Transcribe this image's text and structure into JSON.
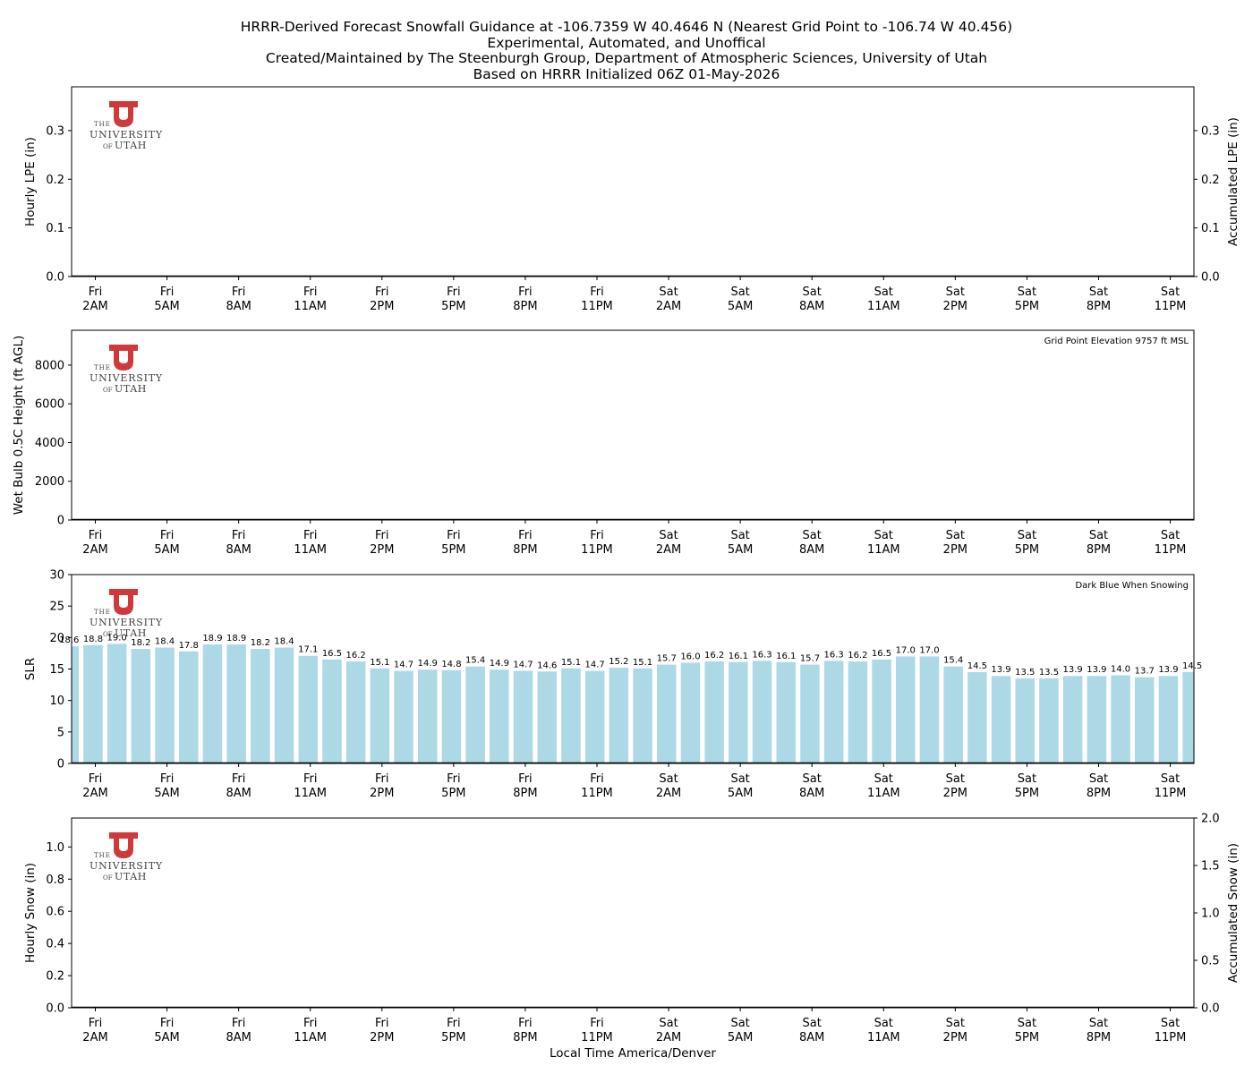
{
  "title": {
    "line1": "HRRR-Derived Forecast Snowfall Guidance at -106.7359 W 40.4646 N (Nearest Grid Point to -106.74 W 40.456)",
    "line2": "Experimental, Automated, and Unoffical",
    "line3": "Created/Maintained by The Steenburgh Group, Department of Atmospheric Sciences, University of Utah",
    "line4": "Based on HRRR Initialized 06Z 01-May-2026"
  },
  "xlabel": "Local Time America/Denver",
  "logo": {
    "the": "THE",
    "university": "UNIVERSITY",
    "of": "OF",
    "utah": "UTAH",
    "letter": "U",
    "color": "#d0393b"
  },
  "colors": {
    "bar": "#add8e6",
    "axis": "#000000"
  },
  "chart_data": [
    {
      "type": "bar",
      "ylabel": "Hourly LPE (in)",
      "ylabel_right": "Accumulated LPE (in)",
      "ylim": [
        0,
        0.39
      ],
      "yticks": [
        "0.0",
        "0.1",
        "0.2",
        "0.3"
      ],
      "ylim_right": [
        0,
        0.39
      ],
      "yticks_right": [
        "0.0",
        "0.1",
        "0.2",
        "0.3"
      ],
      "x_ticks": [
        [
          "Fri",
          "2AM"
        ],
        [
          "Fri",
          "5AM"
        ],
        [
          "Fri",
          "8AM"
        ],
        [
          "Fri",
          "11AM"
        ],
        [
          "Fri",
          "2PM"
        ],
        [
          "Fri",
          "5PM"
        ],
        [
          "Fri",
          "8PM"
        ],
        [
          "Fri",
          "11PM"
        ],
        [
          "Sat",
          "2AM"
        ],
        [
          "Sat",
          "5AM"
        ],
        [
          "Sat",
          "8AM"
        ],
        [
          "Sat",
          "11AM"
        ],
        [
          "Sat",
          "2PM"
        ],
        [
          "Sat",
          "5PM"
        ],
        [
          "Sat",
          "8PM"
        ],
        [
          "Sat",
          "11PM"
        ]
      ],
      "values": [],
      "annotation": ""
    },
    {
      "type": "bar",
      "ylabel": "Wet Bulb 0.5C Height (ft AGL)",
      "ylim": [
        0,
        9800
      ],
      "yticks": [
        "0",
        "2000",
        "4000",
        "6000",
        "8000"
      ],
      "x_ticks": [
        [
          "Fri",
          "2AM"
        ],
        [
          "Fri",
          "5AM"
        ],
        [
          "Fri",
          "8AM"
        ],
        [
          "Fri",
          "11AM"
        ],
        [
          "Fri",
          "2PM"
        ],
        [
          "Fri",
          "5PM"
        ],
        [
          "Fri",
          "8PM"
        ],
        [
          "Fri",
          "11PM"
        ],
        [
          "Sat",
          "2AM"
        ],
        [
          "Sat",
          "5AM"
        ],
        [
          "Sat",
          "8AM"
        ],
        [
          "Sat",
          "11AM"
        ],
        [
          "Sat",
          "2PM"
        ],
        [
          "Sat",
          "5PM"
        ],
        [
          "Sat",
          "8PM"
        ],
        [
          "Sat",
          "11PM"
        ]
      ],
      "values": [],
      "annotation": "Grid Point Elevation 9757 ft MSL"
    },
    {
      "type": "bar",
      "ylabel": "SLR",
      "ylim": [
        0,
        30
      ],
      "yticks": [
        "0",
        "5",
        "10",
        "15",
        "20",
        "25",
        "30"
      ],
      "x_ticks": [
        [
          "Fri",
          "2AM"
        ],
        [
          "Fri",
          "5AM"
        ],
        [
          "Fri",
          "8AM"
        ],
        [
          "Fri",
          "11AM"
        ],
        [
          "Fri",
          "2PM"
        ],
        [
          "Fri",
          "5PM"
        ],
        [
          "Fri",
          "8PM"
        ],
        [
          "Fri",
          "11PM"
        ],
        [
          "Sat",
          "2AM"
        ],
        [
          "Sat",
          "5AM"
        ],
        [
          "Sat",
          "8AM"
        ],
        [
          "Sat",
          "11AM"
        ],
        [
          "Sat",
          "2PM"
        ],
        [
          "Sat",
          "5PM"
        ],
        [
          "Sat",
          "8PM"
        ],
        [
          "Sat",
          "11PM"
        ]
      ],
      "values": [
        18.6,
        18.8,
        19.0,
        18.2,
        18.4,
        17.8,
        18.9,
        18.9,
        18.2,
        18.4,
        17.1,
        16.5,
        16.2,
        15.1,
        14.7,
        14.9,
        14.8,
        15.4,
        14.9,
        14.7,
        14.6,
        15.1,
        14.7,
        15.2,
        15.1,
        15.7,
        16.0,
        16.2,
        16.1,
        16.3,
        16.1,
        15.7,
        16.3,
        16.2,
        16.5,
        17.0,
        17.0,
        15.4,
        14.5,
        13.9,
        13.5,
        13.5,
        13.9,
        13.9,
        14.0,
        13.7,
        13.9,
        14.5
      ],
      "labels": [
        "18.6",
        "18.8",
        "19.0",
        "18.2",
        "18.4",
        "17.8",
        "18.9",
        "18.9",
        "18.2",
        "18.4",
        "17.1",
        "16.5",
        "16.2",
        "15.1",
        "14.7",
        "14.9",
        "14.8",
        "15.4",
        "14.9",
        "14.7",
        "14.6",
        "15.1",
        "14.7",
        "15.2",
        "15.1",
        "15.7",
        "16.0",
        "16.2",
        "16.1",
        "16.3",
        "16.1",
        "15.7",
        "16.3",
        "16.2",
        "16.5",
        "17.0",
        "17.0",
        "15.4",
        "14.5",
        "13.9",
        "13.5",
        "13.5",
        "13.9",
        "13.9",
        "14.0",
        "13.7",
        "13.9",
        "14.5"
      ],
      "annotation": "Dark Blue When Snowing"
    },
    {
      "type": "bar",
      "ylabel": "Hourly Snow (in)",
      "ylabel_right": "Accumulated Snow (in)",
      "ylim": [
        0,
        1.18
      ],
      "yticks": [
        "0.0",
        "0.2",
        "0.4",
        "0.6",
        "0.8",
        "1.0"
      ],
      "ylim_right": [
        0,
        2.0
      ],
      "yticks_right": [
        "0.0",
        "0.5",
        "1.0",
        "1.5",
        "2.0"
      ],
      "x_ticks": [
        [
          "Fri",
          "2AM"
        ],
        [
          "Fri",
          "5AM"
        ],
        [
          "Fri",
          "8AM"
        ],
        [
          "Fri",
          "11AM"
        ],
        [
          "Fri",
          "2PM"
        ],
        [
          "Fri",
          "5PM"
        ],
        [
          "Fri",
          "8PM"
        ],
        [
          "Fri",
          "11PM"
        ],
        [
          "Sat",
          "2AM"
        ],
        [
          "Sat",
          "5AM"
        ],
        [
          "Sat",
          "8AM"
        ],
        [
          "Sat",
          "11AM"
        ],
        [
          "Sat",
          "2PM"
        ],
        [
          "Sat",
          "5PM"
        ],
        [
          "Sat",
          "8PM"
        ],
        [
          "Sat",
          "11PM"
        ]
      ],
      "values": [],
      "annotation": ""
    }
  ]
}
